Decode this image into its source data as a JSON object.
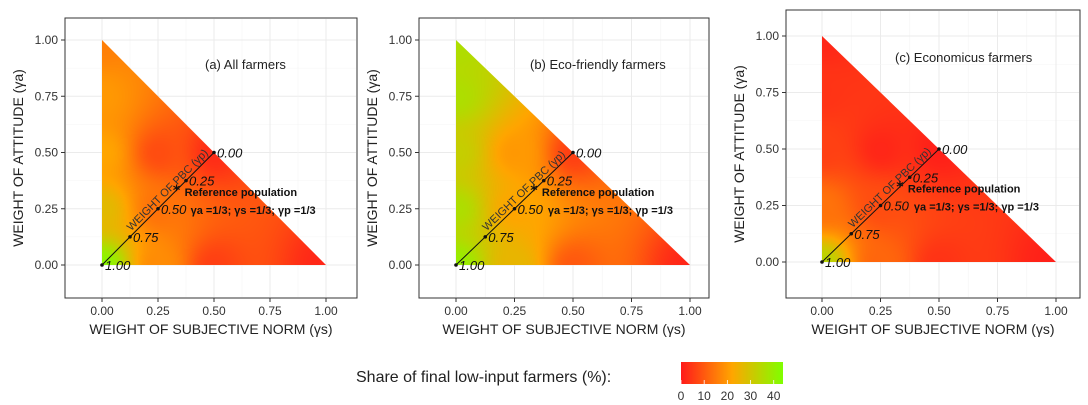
{
  "chart_data": [
    {
      "type": "heatmap",
      "panel": "a",
      "title": "(a) All farmers",
      "xlabel": "WEIGHT OF SUBJECTIVE NORM (γs)",
      "ylabel": "WEIGHT OF ATTITUDE (γa)",
      "xlim": [
        0,
        1
      ],
      "ylim": [
        0,
        1
      ],
      "x_ticks": [
        "0.00",
        "0.25",
        "0.50",
        "0.75",
        "1.00"
      ],
      "y_ticks": [
        "0.00",
        "0.25",
        "0.50",
        "0.75",
        "1.00"
      ],
      "diagonal_label": "WEIGHT OF PBC (γp)",
      "diagonal_ticks": [
        {
          "t": 0.0,
          "label": "0.00"
        },
        {
          "t": 0.25,
          "label": "0.25"
        },
        {
          "t": 0.5,
          "label": "0.50"
        },
        {
          "t": 0.75,
          "label": "0.75"
        },
        {
          "t": 1.0,
          "label": "1.00"
        }
      ],
      "reference_point": {
        "x": 0.333,
        "y": 0.333,
        "label": "Reference population",
        "sublabel": "γa =1/3; γs =1/3; γp =1/3"
      },
      "grid": true,
      "color_field": [
        {
          "x": 0.0,
          "y": 1.0,
          "value": 16
        },
        {
          "x": 0.0,
          "y": 0.75,
          "value": 20
        },
        {
          "x": 0.0,
          "y": 0.5,
          "value": 22
        },
        {
          "x": 0.0,
          "y": 0.25,
          "value": 27
        },
        {
          "x": 0.0,
          "y": 0.0,
          "value": 42
        },
        {
          "x": 0.25,
          "y": 0.5,
          "value": 8
        },
        {
          "x": 0.25,
          "y": 0.25,
          "value": 14
        },
        {
          "x": 0.25,
          "y": 0.0,
          "value": 18
        },
        {
          "x": 0.5,
          "y": 0.5,
          "value": 3
        },
        {
          "x": 0.5,
          "y": 0.0,
          "value": 6
        },
        {
          "x": 1.0,
          "y": 0.0,
          "value": 2
        }
      ]
    },
    {
      "type": "heatmap",
      "panel": "b",
      "title": "(b) Eco-friendly farmers",
      "xlabel": "WEIGHT OF SUBJECTIVE NORM (γs)",
      "ylabel": "WEIGHT OF ATTITUDE (γa)",
      "xlim": [
        0,
        1
      ],
      "ylim": [
        0,
        1
      ],
      "x_ticks": [
        "0.00",
        "0.25",
        "0.50",
        "0.75",
        "1.00"
      ],
      "y_ticks": [
        "0.00",
        "0.25",
        "0.50",
        "0.75",
        "1.00"
      ],
      "diagonal_label": "WEIGHT OF PBC (γp)",
      "diagonal_ticks": [
        {
          "t": 0.0,
          "label": "0.00"
        },
        {
          "t": 0.25,
          "label": "0.25"
        },
        {
          "t": 0.5,
          "label": "0.50"
        },
        {
          "t": 0.75,
          "label": "0.75"
        },
        {
          "t": 1.0,
          "label": "1.00"
        }
      ],
      "reference_point": {
        "x": 0.333,
        "y": 0.333,
        "label": "Reference population",
        "sublabel": "γa =1/3; γs =1/3; γp =1/3"
      },
      "grid": true,
      "color_field": [
        {
          "x": 0.0,
          "y": 1.0,
          "value": 36
        },
        {
          "x": 0.0,
          "y": 0.75,
          "value": 36
        },
        {
          "x": 0.0,
          "y": 0.5,
          "value": 32
        },
        {
          "x": 0.0,
          "y": 0.25,
          "value": 36
        },
        {
          "x": 0.0,
          "y": 0.0,
          "value": 40
        },
        {
          "x": 0.25,
          "y": 0.5,
          "value": 20
        },
        {
          "x": 0.25,
          "y": 0.25,
          "value": 22
        },
        {
          "x": 0.25,
          "y": 0.0,
          "value": 26
        },
        {
          "x": 0.5,
          "y": 0.5,
          "value": 6
        },
        {
          "x": 0.5,
          "y": 0.0,
          "value": 10
        },
        {
          "x": 1.0,
          "y": 0.0,
          "value": 2
        }
      ]
    },
    {
      "type": "heatmap",
      "panel": "c",
      "title": "(c) Economicus farmers",
      "xlabel": "WEIGHT OF SUBJECTIVE NORM (γs)",
      "ylabel": "WEIGHT OF ATTITUDE (γa)",
      "xlim": [
        0,
        1
      ],
      "ylim": [
        0,
        1
      ],
      "x_ticks": [
        "0.00",
        "0.25",
        "0.50",
        "0.75",
        "1.00"
      ],
      "y_ticks": [
        "0.00",
        "0.25",
        "0.50",
        "0.75",
        "1.00"
      ],
      "diagonal_label": "WEIGHT OF PBC (γp)",
      "diagonal_ticks": [
        {
          "t": 0.0,
          "label": "0.00"
        },
        {
          "t": 0.25,
          "label": "0.25"
        },
        {
          "t": 0.5,
          "label": "0.50"
        },
        {
          "t": 0.75,
          "label": "0.75"
        },
        {
          "t": 1.0,
          "label": "1.00"
        }
      ],
      "reference_point": {
        "x": 0.333,
        "y": 0.333,
        "label": "Reference population",
        "sublabel": "γa =1/3; γs =1/3; γp =1/3"
      },
      "grid": true,
      "color_field": [
        {
          "x": 0.0,
          "y": 1.0,
          "value": 2
        },
        {
          "x": 0.0,
          "y": 0.75,
          "value": 4
        },
        {
          "x": 0.0,
          "y": 0.5,
          "value": 6
        },
        {
          "x": 0.0,
          "y": 0.25,
          "value": 14
        },
        {
          "x": 0.0,
          "y": 0.0,
          "value": 34
        },
        {
          "x": 0.25,
          "y": 0.5,
          "value": 2
        },
        {
          "x": 0.25,
          "y": 0.25,
          "value": 8
        },
        {
          "x": 0.25,
          "y": 0.0,
          "value": 12
        },
        {
          "x": 0.5,
          "y": 0.5,
          "value": 1
        },
        {
          "x": 0.5,
          "y": 0.0,
          "value": 4
        },
        {
          "x": 1.0,
          "y": 0.0,
          "value": 1
        }
      ]
    }
  ],
  "legend": {
    "title": "Share of final low-input farmers (%):",
    "ticks": [
      {
        "value": 0,
        "label": "0"
      },
      {
        "value": 10,
        "label": "10"
      },
      {
        "value": 20,
        "label": "20"
      },
      {
        "value": 30,
        "label": "30"
      },
      {
        "value": 40,
        "label": "40"
      }
    ],
    "range": [
      0,
      44
    ],
    "colors": [
      "#ff1a1a",
      "#ffa500",
      "#7fff00"
    ]
  }
}
